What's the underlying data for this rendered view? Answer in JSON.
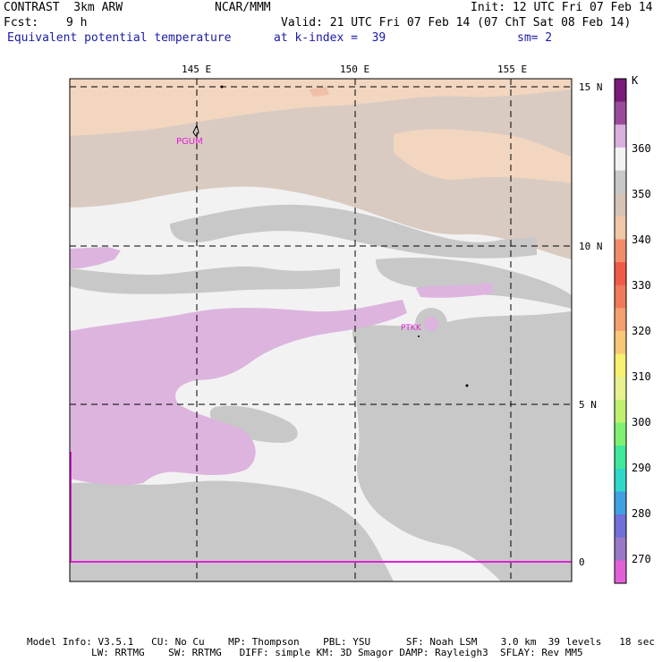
{
  "header": {
    "title_left": "CONTRAST  3km ARW",
    "center": "NCAR/MMM",
    "init": "Init: 12 UTC Fri 07 Feb 14",
    "fcst_label": "Fcst:",
    "fcst_value": "9 h",
    "valid": "Valid: 21 UTC Fri 07 Feb 14 (07 ChT Sat 08 Feb 14)",
    "field": "Equivalent potential temperature",
    "level": "at k-index =  39",
    "smoothing": "sm= 2"
  },
  "map": {
    "lon_labels": [
      "145 E",
      "150 E",
      "155 E"
    ],
    "lat_labels": [
      "15 N",
      "10 N",
      "5 N",
      "0"
    ],
    "stations": [
      "PGUM",
      "PTKK"
    ]
  },
  "colorbar": {
    "unit": "K",
    "labels": [
      "360",
      "350",
      "340",
      "330",
      "320",
      "310",
      "300",
      "290",
      "280",
      "270"
    ],
    "colors": [
      "#7a1a7a",
      "#9a4c9a",
      "#d9b0dd",
      "#f2f2f2",
      "#c8c8c8",
      "#d4c4b8",
      "#f0c8a8",
      "#f08c6c",
      "#f05a4a",
      "#f07a5a",
      "#f4a070",
      "#f8c878",
      "#f8f070",
      "#e8f090",
      "#c0f070",
      "#80f070",
      "#40e89c",
      "#30d8c8",
      "#40a0e0",
      "#7070d8",
      "#9878c8",
      "#e060d8"
    ]
  },
  "footer": {
    "line1": "Model Info: V3.5.1   CU: No Cu    MP: Thompson    PBL: YSU      SF: Noah LSM    3.0 km  39 levels   18 sec",
    "line2": "LW: RRTMG    SW: RRTMG   DIFF: simple KM: 3D Smagor DAMP: Rayleigh3  SFLAY: Rev MM5"
  }
}
